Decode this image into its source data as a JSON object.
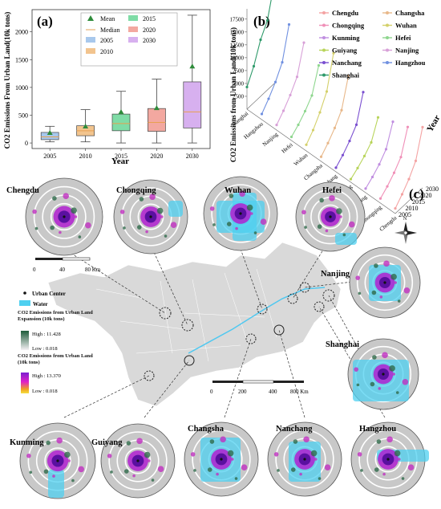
{
  "panel_a": {
    "label": "(a)",
    "ylabel": "CO2 Emissions From Urban Land(10k tons)",
    "xlabel": "Year",
    "yticks": [
      "0",
      "500",
      "1000",
      "1500",
      "2000"
    ],
    "legend": [
      "Mean",
      "Median",
      "2005",
      "2010",
      "2015",
      "2020",
      "2030"
    ]
  },
  "panel_b": {
    "label": "(b)",
    "zlabel": "CO2 Emissions from Urban Land(10k tons)",
    "zticks": [
      "2500",
      "5000",
      "7500",
      "10000",
      "12500",
      "15000",
      "17500"
    ],
    "year_axis_label": "Year",
    "years": [
      "2005",
      "2010",
      "2015",
      "2020",
      "2030"
    ],
    "cities_axis": [
      "Shanghai",
      "Hangzhou",
      "Nanjing",
      "Hefei",
      "Wuhan",
      "Changsha",
      "Nanchang",
      "Guiyang",
      "Kunming",
      "Chongqing",
      "Chengdu"
    ],
    "legend": [
      {
        "name": "Chengdu",
        "color": "#f4a3a3"
      },
      {
        "name": "Changsha",
        "color": "#e8b88a"
      },
      {
        "name": "Chongqing",
        "color": "#f090b8"
      },
      {
        "name": "Wuhan",
        "color": "#d4d06a"
      },
      {
        "name": "Kunming",
        "color": "#c08ee0"
      },
      {
        "name": "Hefei",
        "color": "#8ed68e"
      },
      {
        "name": "Guiyang",
        "color": "#b8d45a"
      },
      {
        "name": "Nanjing",
        "color": "#d8a0d8"
      },
      {
        "name": "Nanchang",
        "color": "#7a4fd0"
      },
      {
        "name": "Hangzhou",
        "color": "#7090e0"
      },
      {
        "name": "Shanghai",
        "color": "#2e9a6a"
      }
    ]
  },
  "panel_c": {
    "label": "(c)",
    "north": "N",
    "scale_small": [
      "0",
      "40",
      "80 Km"
    ],
    "scale_large": [
      "0",
      "200",
      "400",
      "800 Km"
    ],
    "legend_urban_center": "Urban Center",
    "legend_water": "Water",
    "legend_expansion_title": "CO2 Emissions from Urban Land Expansion (10k tons)",
    "legend_expansion_high": "High : 11.428",
    "legend_expansion_low": "Low : 0.018",
    "legend_land_title": "CO2 Emissions from Urban Land (10k tons)",
    "legend_land_high": "High : 13.370",
    "legend_land_low": "Low : 0.018",
    "cities": [
      "Chengdu",
      "Chongqing",
      "Wuhan",
      "Hefei",
      "Nanjing",
      "Shanghai",
      "Kunming",
      "Guiyang",
      "Changsha",
      "Nanchang",
      "Hangzhou"
    ]
  },
  "chart_data": [
    {
      "type": "box",
      "title": "(a)",
      "xlabel": "Year",
      "ylabel": "CO2 Emissions From Urban Land(10k tons)",
      "ylim": [
        -100,
        2400
      ],
      "categories": [
        "2005",
        "2010",
        "2015",
        "2020",
        "2030"
      ],
      "colors": [
        "#a8c8ec",
        "#f2c48e",
        "#7fdca6",
        "#f3a8a0",
        "#d7b0ef"
      ],
      "boxes": [
        {
          "year": "2005",
          "min": 20,
          "q1": 60,
          "median": 110,
          "q3": 190,
          "max": 300,
          "mean": 175
        },
        {
          "year": "2010",
          "min": 20,
          "q1": 130,
          "median": 220,
          "q3": 310,
          "max": 600,
          "mean": 290
        },
        {
          "year": "2015",
          "min": 0,
          "q1": 220,
          "median": 350,
          "q3": 520,
          "max": 930,
          "mean": 550
        },
        {
          "year": "2020",
          "min": 0,
          "q1": 210,
          "median": 370,
          "q3": 620,
          "max": 1150,
          "mean": 620
        },
        {
          "year": "2030",
          "min": 0,
          "q1": 270,
          "median": 560,
          "q3": 1100,
          "max": 2300,
          "mean": 1370
        }
      ]
    },
    {
      "type": "line",
      "title": "(b)",
      "zlabel": "CO2 Emissions from Urban Land(10k tons)",
      "years": [
        "2005",
        "2010",
        "2015",
        "2020",
        "2030"
      ],
      "series": [
        {
          "name": "Chengdu",
          "values": [
            1000,
            2500,
            4200,
            6500,
            11800
          ]
        },
        {
          "name": "Chongqing",
          "values": [
            900,
            2000,
            3400,
            5200,
            9800
          ]
        },
        {
          "name": "Kunming",
          "values": [
            800,
            1800,
            3000,
            4700,
            8800
          ]
        },
        {
          "name": "Guiyang",
          "values": [
            600,
            1500,
            2600,
            4000,
            7600
          ]
        },
        {
          "name": "Nanchang",
          "values": [
            800,
            2000,
            3500,
            5400,
            10500
          ]
        },
        {
          "name": "Changsha",
          "values": [
            900,
            2300,
            4000,
            6200,
            11600
          ]
        },
        {
          "name": "Wuhan",
          "values": [
            1200,
            2800,
            5000,
            7800,
            14000
          ]
        },
        {
          "name": "Hefei",
          "values": [
            700,
            1800,
            3200,
            5000,
            9600
          ]
        },
        {
          "name": "Nanjing",
          "values": [
            1000,
            2500,
            4300,
            6600,
            12000
          ]
        },
        {
          "name": "Hangzhou",
          "values": [
            1100,
            2800,
            4800,
            7400,
            13500
          ]
        },
        {
          "name": "Shanghai",
          "values": [
            4300,
            7100,
            11000,
            13500,
            19500
          ]
        }
      ]
    }
  ]
}
